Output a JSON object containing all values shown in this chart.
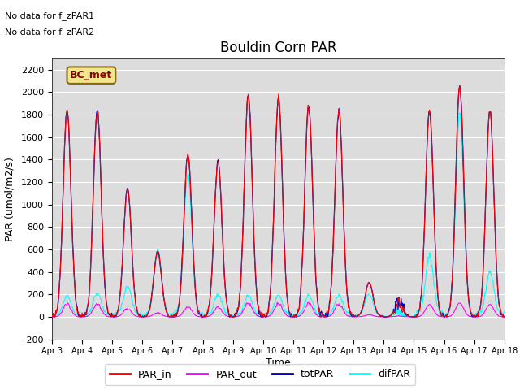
{
  "title": "Bouldin Corn PAR",
  "xlabel": "Time",
  "ylabel": "PAR (umol/m2/s)",
  "ylim": [
    -200,
    2300
  ],
  "yticks": [
    -200,
    0,
    200,
    400,
    600,
    800,
    1000,
    1200,
    1400,
    1600,
    1800,
    2000,
    2200
  ],
  "no_data_text": [
    "No data for f_zPAR1",
    "No data for f_zPAR2"
  ],
  "bc_met_label": "BC_met",
  "colors": {
    "PAR_in": "#ff0000",
    "PAR_out": "#ff00ff",
    "totPAR": "#0000bb",
    "difPAR": "#00ffff"
  },
  "legend_labels": [
    "PAR_in",
    "PAR_out",
    "totPAR",
    "difPAR"
  ],
  "bg_color": "#dcdcdc",
  "start_day": 3,
  "end_day": 18,
  "num_days": 15
}
